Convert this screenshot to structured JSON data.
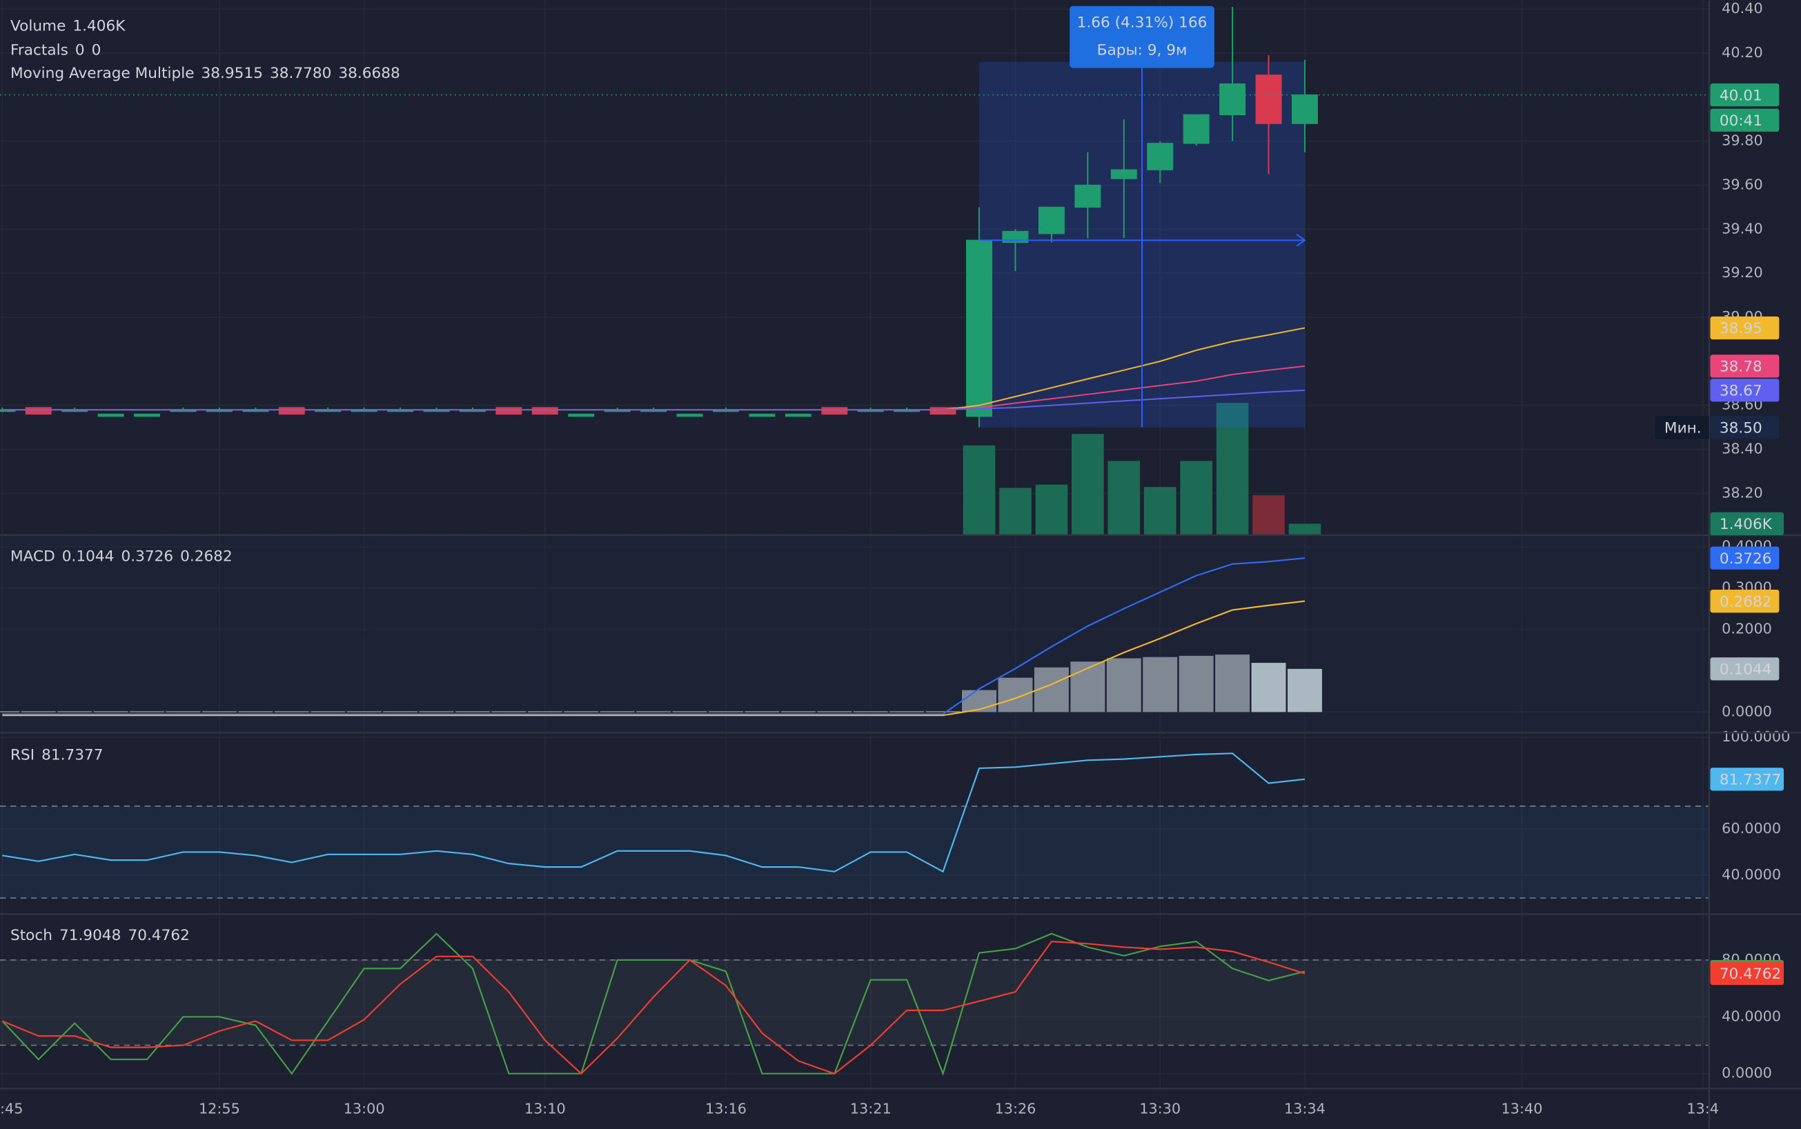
{
  "chart_data": [
    {
      "type": "candlestick",
      "categories": [
        ":45",
        null,
        null,
        null,
        null,
        null,
        "12:55",
        null,
        null,
        null,
        "13:00",
        null,
        null,
        null,
        null,
        "13:10",
        null,
        null,
        null,
        null,
        "13:16",
        null,
        null,
        null,
        "13:21",
        null,
        null,
        null,
        "13:26",
        null,
        null,
        null,
        "13:30",
        null,
        null,
        null,
        "13:34",
        null,
        null,
        null,
        null,
        null,
        "13:40",
        null,
        null,
        null,
        null,
        "13:4"
      ],
      "open": [
        38.58,
        38.59,
        38.58,
        38.55,
        38.55,
        38.58,
        38.58,
        38.58,
        38.59,
        38.58,
        38.58,
        38.58,
        38.58,
        38.58,
        38.59,
        38.59,
        38.55,
        38.58,
        38.58,
        38.55,
        38.58,
        38.55,
        38.55,
        38.59,
        38.58,
        38.58,
        38.59,
        38.55,
        39.34,
        39.38,
        39.5,
        39.63,
        39.67,
        39.79,
        39.92,
        40.1,
        39.88,
        null,
        null,
        null,
        null,
        null,
        null,
        null,
        null,
        null,
        null,
        null
      ],
      "high": [
        38.59,
        38.59,
        38.59,
        38.56,
        38.56,
        38.59,
        38.59,
        38.59,
        38.59,
        38.59,
        38.59,
        38.59,
        38.59,
        38.59,
        38.59,
        38.59,
        38.56,
        38.59,
        38.59,
        38.56,
        38.59,
        38.56,
        38.56,
        38.59,
        38.59,
        38.59,
        38.59,
        39.5,
        39.4,
        39.5,
        39.75,
        39.9,
        39.8,
        39.92,
        40.41,
        40.19,
        40.17,
        null,
        null,
        null,
        null,
        null,
        null,
        null,
        null,
        null,
        null,
        null
      ],
      "low": [
        38.57,
        38.56,
        38.57,
        38.55,
        38.55,
        38.57,
        38.57,
        38.57,
        38.56,
        38.57,
        38.57,
        38.57,
        38.57,
        38.57,
        38.56,
        38.56,
        38.55,
        38.57,
        38.57,
        38.55,
        38.57,
        38.55,
        38.55,
        38.56,
        38.57,
        38.57,
        38.56,
        38.5,
        39.21,
        39.34,
        39.36,
        39.36,
        39.61,
        39.78,
        39.8,
        39.65,
        39.75,
        null,
        null,
        null,
        null,
        null,
        null,
        null,
        null,
        null,
        null,
        null
      ],
      "close": [
        38.58,
        38.56,
        38.58,
        38.56,
        38.56,
        38.58,
        38.58,
        38.58,
        38.56,
        38.58,
        38.58,
        38.58,
        38.58,
        38.58,
        38.56,
        38.56,
        38.56,
        38.58,
        38.58,
        38.56,
        38.58,
        38.56,
        38.56,
        38.56,
        38.58,
        38.58,
        38.56,
        39.35,
        39.39,
        39.5,
        39.6,
        39.67,
        39.79,
        39.92,
        40.06,
        39.88,
        40.01,
        null,
        null,
        null,
        null,
        null,
        null,
        null,
        null,
        null,
        null,
        null
      ],
      "up_color": "#1f9d6f",
      "down_color": "#d93a4f",
      "ylim": [
        38.01,
        40.44
      ],
      "yticks": [
        {
          "value": 38.2,
          "label": "38.20"
        },
        {
          "value": 38.4,
          "label": "38.40"
        },
        {
          "value": 38.6,
          "label": "38.60"
        },
        {
          "value": 39,
          "label": "39.00"
        },
        {
          "value": 39.2,
          "label": "39.20"
        },
        {
          "value": 39.4,
          "label": "39.40"
        },
        {
          "value": 39.6,
          "label": "39.60"
        },
        {
          "value": 39.8,
          "label": "39.80"
        },
        {
          "value": 40.2,
          "label": "40.20"
        },
        {
          "value": 40.4,
          "label": "40.40"
        }
      ],
      "grid": true,
      "countdown": "00:41",
      "volume": {
        "name": "Volume",
        "up_color": "#1b6b55",
        "down_color": "#7c2c39",
        "ylim": [
          0,
          65500
        ],
        "values": [
          100,
          100,
          100,
          100,
          100,
          100,
          100,
          100,
          100,
          100,
          100,
          100,
          100,
          100,
          100,
          100,
          100,
          100,
          100,
          100,
          100,
          100,
          100,
          100,
          100,
          100,
          100,
          11000,
          5800,
          6200,
          12400,
          9100,
          5900,
          9100,
          16200,
          4900,
          1406,
          null,
          null,
          null,
          null,
          null,
          null,
          null,
          null,
          null,
          null,
          null
        ],
        "value_labels": [
          null,
          null,
          null,
          null,
          null,
          null,
          null,
          null,
          null,
          null,
          null,
          null,
          null,
          null,
          null,
          null,
          null,
          null,
          null,
          null,
          null,
          null,
          null,
          null,
          null,
          null,
          null,
          null,
          null,
          null,
          null,
          null,
          null,
          null,
          null,
          null,
          "1.406K",
          null,
          null,
          null,
          null,
          null,
          null,
          null,
          null,
          null,
          null,
          null
        ]
      },
      "fractals": {
        "name": "Fractals",
        "values": [
          0,
          0
        ],
        "colors": [
          "#f0602a",
          "#c6d300"
        ]
      },
      "moving_averages": {
        "name": "Moving Average Multiple",
        "series": [
          {
            "color": "#f2b92e",
            "legend_label": "38.9515",
            "axis_label": "38.95",
            "values": [
              38.58,
              38.58,
              38.58,
              38.58,
              38.58,
              38.58,
              38.58,
              38.58,
              38.58,
              38.58,
              38.58,
              38.58,
              38.58,
              38.58,
              38.58,
              38.58,
              38.58,
              38.58,
              38.58,
              38.58,
              38.58,
              38.58,
              38.58,
              38.58,
              38.58,
              38.58,
              38.58,
              38.6,
              38.64,
              38.68,
              38.72,
              38.76,
              38.8,
              38.85,
              38.89,
              38.92,
              38.9515,
              null,
              null,
              null,
              null,
              null,
              null,
              null,
              null,
              null,
              null,
              null
            ]
          },
          {
            "color": "#e8457a",
            "legend_label": "38.7780",
            "axis_label": "38.78",
            "values": [
              38.58,
              38.58,
              38.58,
              38.58,
              38.58,
              38.58,
              38.58,
              38.58,
              38.58,
              38.58,
              38.58,
              38.58,
              38.58,
              38.58,
              38.58,
              38.58,
              38.58,
              38.58,
              38.58,
              38.58,
              38.58,
              38.58,
              38.58,
              38.58,
              38.58,
              38.58,
              38.58,
              38.59,
              38.61,
              38.63,
              38.65,
              38.67,
              38.69,
              38.71,
              38.74,
              38.76,
              38.778,
              null,
              null,
              null,
              null,
              null,
              null,
              null,
              null,
              null,
              null,
              null
            ]
          },
          {
            "color": "#5f5ff0",
            "legend_label": "38.6688",
            "axis_label": "38.67",
            "values": [
              38.58,
              38.58,
              38.58,
              38.58,
              38.58,
              38.58,
              38.58,
              38.58,
              38.58,
              38.58,
              38.58,
              38.58,
              38.58,
              38.58,
              38.58,
              38.58,
              38.58,
              38.58,
              38.58,
              38.58,
              38.58,
              38.58,
              38.58,
              38.58,
              38.58,
              38.58,
              38.58,
              38.585,
              38.59,
              38.6,
              38.61,
              38.62,
              38.63,
              38.64,
              38.65,
              38.66,
              38.6688,
              null,
              null,
              null,
              null,
              null,
              null,
              null,
              null,
              null,
              null,
              null
            ]
          }
        ]
      },
      "measure": {
        "low": 38.5,
        "high": 40.16,
        "start_index": 27,
        "end_index": 36,
        "color": "#2962ff",
        "label": "1.66 (4.31%) 166",
        "bars_label": "Бары: 9, 9м"
      },
      "min_marker": {
        "caption": "Мин.",
        "label": "38.50"
      }
    },
    {
      "type": "macd",
      "name": "MACD",
      "ylim": [
        -0.05,
        0.425
      ],
      "yticks": [
        {
          "value": 0,
          "label": "0.0000"
        },
        {
          "value": 0.2,
          "label": "0.2000"
        },
        {
          "value": 0.3,
          "label": "0.3000"
        },
        {
          "value": 0.4,
          "label": "0.4000"
        }
      ],
      "grid": true,
      "histogram": {
        "rising_color": "#7f8893",
        "falling_color": "#aab8c2",
        "values": [
          0.002,
          0.002,
          0.002,
          0.002,
          0.002,
          0.002,
          0.002,
          0.002,
          0.002,
          0.002,
          0.002,
          0.002,
          0.002,
          0.002,
          0.002,
          0.002,
          0.002,
          0.002,
          0.002,
          0.002,
          0.002,
          0.002,
          0.002,
          0.002,
          0.002,
          0.002,
          0.002,
          0.053,
          0.083,
          0.108,
          0.122,
          0.13,
          0.133,
          0.136,
          0.139,
          0.119,
          0.1044,
          null,
          null,
          null,
          null,
          null,
          null,
          null,
          null,
          null,
          null,
          null
        ]
      },
      "series": [
        {
          "color": "#2f6cf5",
          "values": [
            -0.005,
            -0.005,
            -0.005,
            -0.005,
            -0.005,
            -0.005,
            -0.005,
            -0.005,
            -0.005,
            -0.005,
            -0.005,
            -0.005,
            -0.005,
            -0.005,
            -0.005,
            -0.005,
            -0.005,
            -0.005,
            -0.005,
            -0.005,
            -0.005,
            -0.005,
            -0.005,
            -0.005,
            -0.005,
            -0.005,
            -0.005,
            0.056,
            0.105,
            0.158,
            0.208,
            0.25,
            0.29,
            0.33,
            0.358,
            0.364,
            0.3726,
            null,
            null,
            null,
            null,
            null,
            null,
            null,
            null,
            null,
            null,
            null
          ]
        },
        {
          "color": "#f2b92e",
          "values": [
            -0.008,
            -0.008,
            -0.008,
            -0.008,
            -0.008,
            -0.008,
            -0.008,
            -0.008,
            -0.008,
            -0.008,
            -0.008,
            -0.008,
            -0.008,
            -0.008,
            -0.008,
            -0.008,
            -0.008,
            -0.008,
            -0.008,
            -0.008,
            -0.008,
            -0.008,
            -0.008,
            -0.008,
            -0.008,
            -0.008,
            -0.008,
            0.006,
            0.033,
            0.067,
            0.106,
            0.144,
            0.178,
            0.214,
            0.247,
            0.258,
            0.2682,
            null,
            null,
            null,
            null,
            null,
            null,
            null,
            null,
            null,
            null,
            null
          ]
        }
      ]
    },
    {
      "type": "rsi",
      "name": "RSI",
      "ylim": [
        23,
        101.5
      ],
      "yticks": [
        {
          "value": 40,
          "label": "40.0000"
        },
        {
          "value": 60,
          "label": "60.0000"
        },
        {
          "value": 100,
          "label": "100.0000"
        }
      ],
      "grid": true,
      "bands": [
        30,
        70
      ],
      "band_color": "#2196f3",
      "series": [
        {
          "color": "#4fb8ef",
          "values": [
            48.5,
            46,
            49,
            46.5,
            46.5,
            50,
            50,
            48.5,
            45.5,
            49,
            49,
            49,
            50.5,
            49,
            45,
            43.5,
            43.5,
            50.5,
            50.5,
            50.5,
            48.5,
            43.5,
            43.5,
            41.5,
            50,
            50,
            41.5,
            86.5,
            87,
            88.5,
            90,
            90.5,
            91.5,
            92.5,
            93,
            80,
            81.7377,
            null,
            null,
            null,
            null,
            null,
            null,
            null,
            null,
            null,
            null,
            null
          ]
        }
      ]
    },
    {
      "type": "stochastic",
      "name": "Stoch",
      "ylim": [
        -10.5,
        111.5
      ],
      "yticks": [
        {
          "value": 0,
          "label": "0.0000"
        },
        {
          "value": 40,
          "label": "40.0000"
        },
        {
          "value": 80,
          "label": "80.0000"
        }
      ],
      "grid": true,
      "bands": [
        20,
        80
      ],
      "band_color": "#9aa0ac",
      "series": [
        {
          "color": "#43a047",
          "values": [
            37,
            10,
            35.5,
            10,
            10,
            40,
            40,
            34,
            0,
            37,
            74,
            74,
            98.5,
            74,
            0,
            0,
            0,
            80,
            80,
            80,
            72,
            0,
            0,
            0,
            66,
            66,
            0,
            85,
            88,
            98.5,
            89,
            83,
            89.5,
            93,
            74,
            65.5,
            71.9048,
            null,
            null,
            null,
            null,
            null,
            null,
            null,
            null,
            null,
            null,
            null
          ]
        },
        {
          "color": "#f23d2f",
          "values": [
            37,
            26.5,
            26.5,
            18.5,
            18.5,
            20,
            30,
            37,
            23.5,
            23.5,
            38,
            63,
            82.5,
            82.5,
            57.5,
            23.5,
            0,
            25,
            54,
            80,
            62,
            28.5,
            9,
            0,
            20,
            44.5,
            44.5,
            51,
            57.5,
            93,
            91.5,
            89,
            87.5,
            89,
            86,
            78.5,
            70.4762,
            null,
            null,
            null,
            null,
            null,
            null,
            null,
            null,
            null,
            null,
            null
          ]
        }
      ]
    }
  ]
}
